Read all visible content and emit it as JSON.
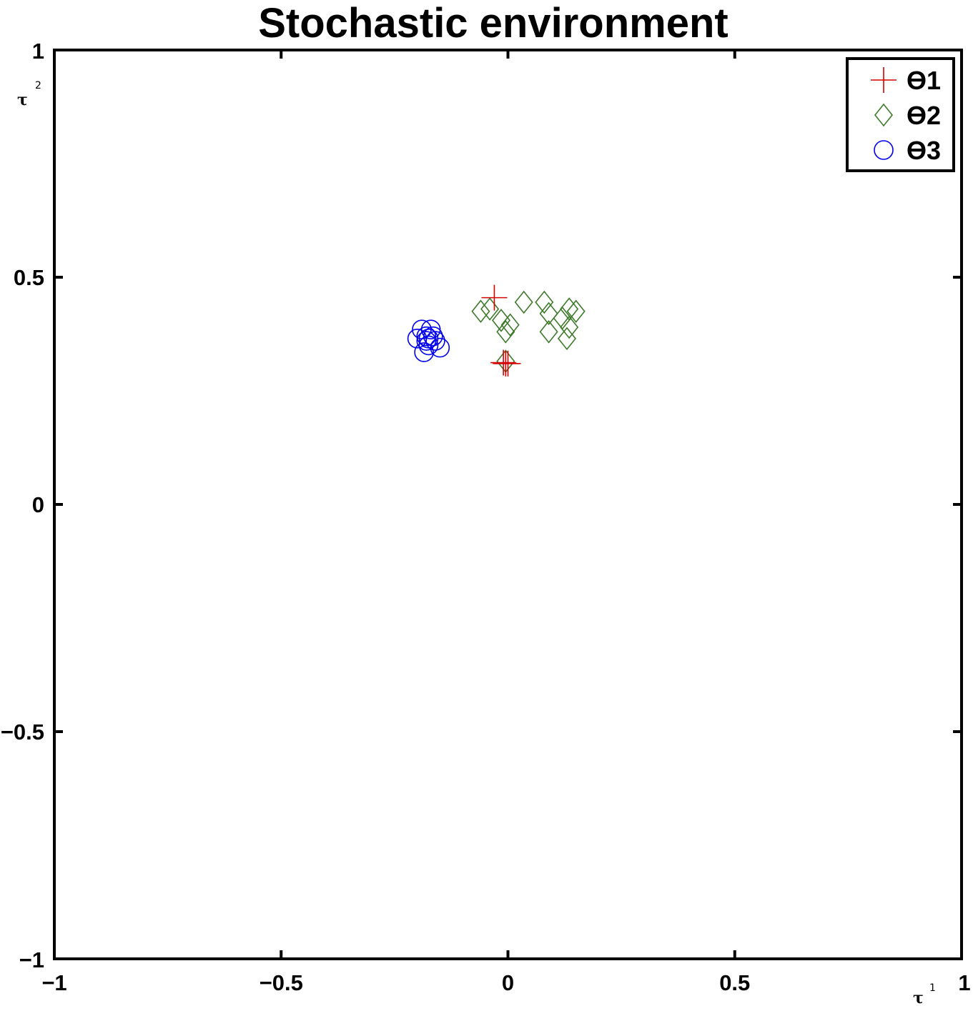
{
  "chart_data": {
    "type": "scatter",
    "title": "Stochastic environment",
    "xlabel": "τ",
    "xlabel_sup": "1",
    "ylabel": "τ",
    "ylabel_sup": "2",
    "xlim": [
      -1,
      1
    ],
    "ylim": [
      -1,
      1
    ],
    "x_ticks": [
      {
        "value": -1,
        "label": "−1"
      },
      {
        "value": -0.5,
        "label": "−0.5"
      },
      {
        "value": 0,
        "label": "0"
      },
      {
        "value": 0.5,
        "label": "0.5"
      },
      {
        "value": 1,
        "label": "1"
      }
    ],
    "y_ticks": [
      {
        "value": -1,
        "label": "−1"
      },
      {
        "value": -0.5,
        "label": "−0.5"
      },
      {
        "value": 0,
        "label": "0"
      },
      {
        "value": 0.5,
        "label": "0.5"
      },
      {
        "value": 1,
        "label": "1"
      }
    ],
    "grid": false,
    "legend_position": "top-right",
    "series": [
      {
        "name": "θ1",
        "legend_label": "ϴ1",
        "marker": "plus",
        "color": "#d40000",
        "points": [
          {
            "x": -0.03,
            "y": 0.455
          },
          {
            "x": -0.005,
            "y": 0.31
          },
          {
            "x": 0.0,
            "y": 0.31
          },
          {
            "x": -0.01,
            "y": 0.312
          }
        ]
      },
      {
        "name": "θ2",
        "legend_label": "ϴ2",
        "marker": "diamond",
        "color": "#3d7a2a",
        "points": [
          {
            "x": -0.06,
            "y": 0.425
          },
          {
            "x": -0.04,
            "y": 0.43
          },
          {
            "x": -0.015,
            "y": 0.405
          },
          {
            "x": 0.005,
            "y": 0.395
          },
          {
            "x": -0.005,
            "y": 0.38
          },
          {
            "x": 0.035,
            "y": 0.445
          },
          {
            "x": 0.08,
            "y": 0.445
          },
          {
            "x": 0.09,
            "y": 0.42
          },
          {
            "x": 0.09,
            "y": 0.38
          },
          {
            "x": 0.12,
            "y": 0.41
          },
          {
            "x": 0.135,
            "y": 0.43
          },
          {
            "x": 0.15,
            "y": 0.425
          },
          {
            "x": 0.135,
            "y": 0.39
          },
          {
            "x": 0.13,
            "y": 0.365
          },
          {
            "x": -0.005,
            "y": 0.315
          }
        ]
      },
      {
        "name": "θ3",
        "legend_label": "ϴ3",
        "marker": "circle",
        "color": "#0000ee",
        "points": [
          {
            "x": -0.2,
            "y": 0.365
          },
          {
            "x": -0.19,
            "y": 0.385
          },
          {
            "x": -0.18,
            "y": 0.37
          },
          {
            "x": -0.17,
            "y": 0.385
          },
          {
            "x": -0.16,
            "y": 0.36
          },
          {
            "x": -0.175,
            "y": 0.35
          },
          {
            "x": -0.185,
            "y": 0.335
          },
          {
            "x": -0.15,
            "y": 0.345
          },
          {
            "x": -0.175,
            "y": 0.365
          },
          {
            "x": -0.165,
            "y": 0.37
          },
          {
            "x": -0.18,
            "y": 0.36
          }
        ]
      }
    ]
  }
}
